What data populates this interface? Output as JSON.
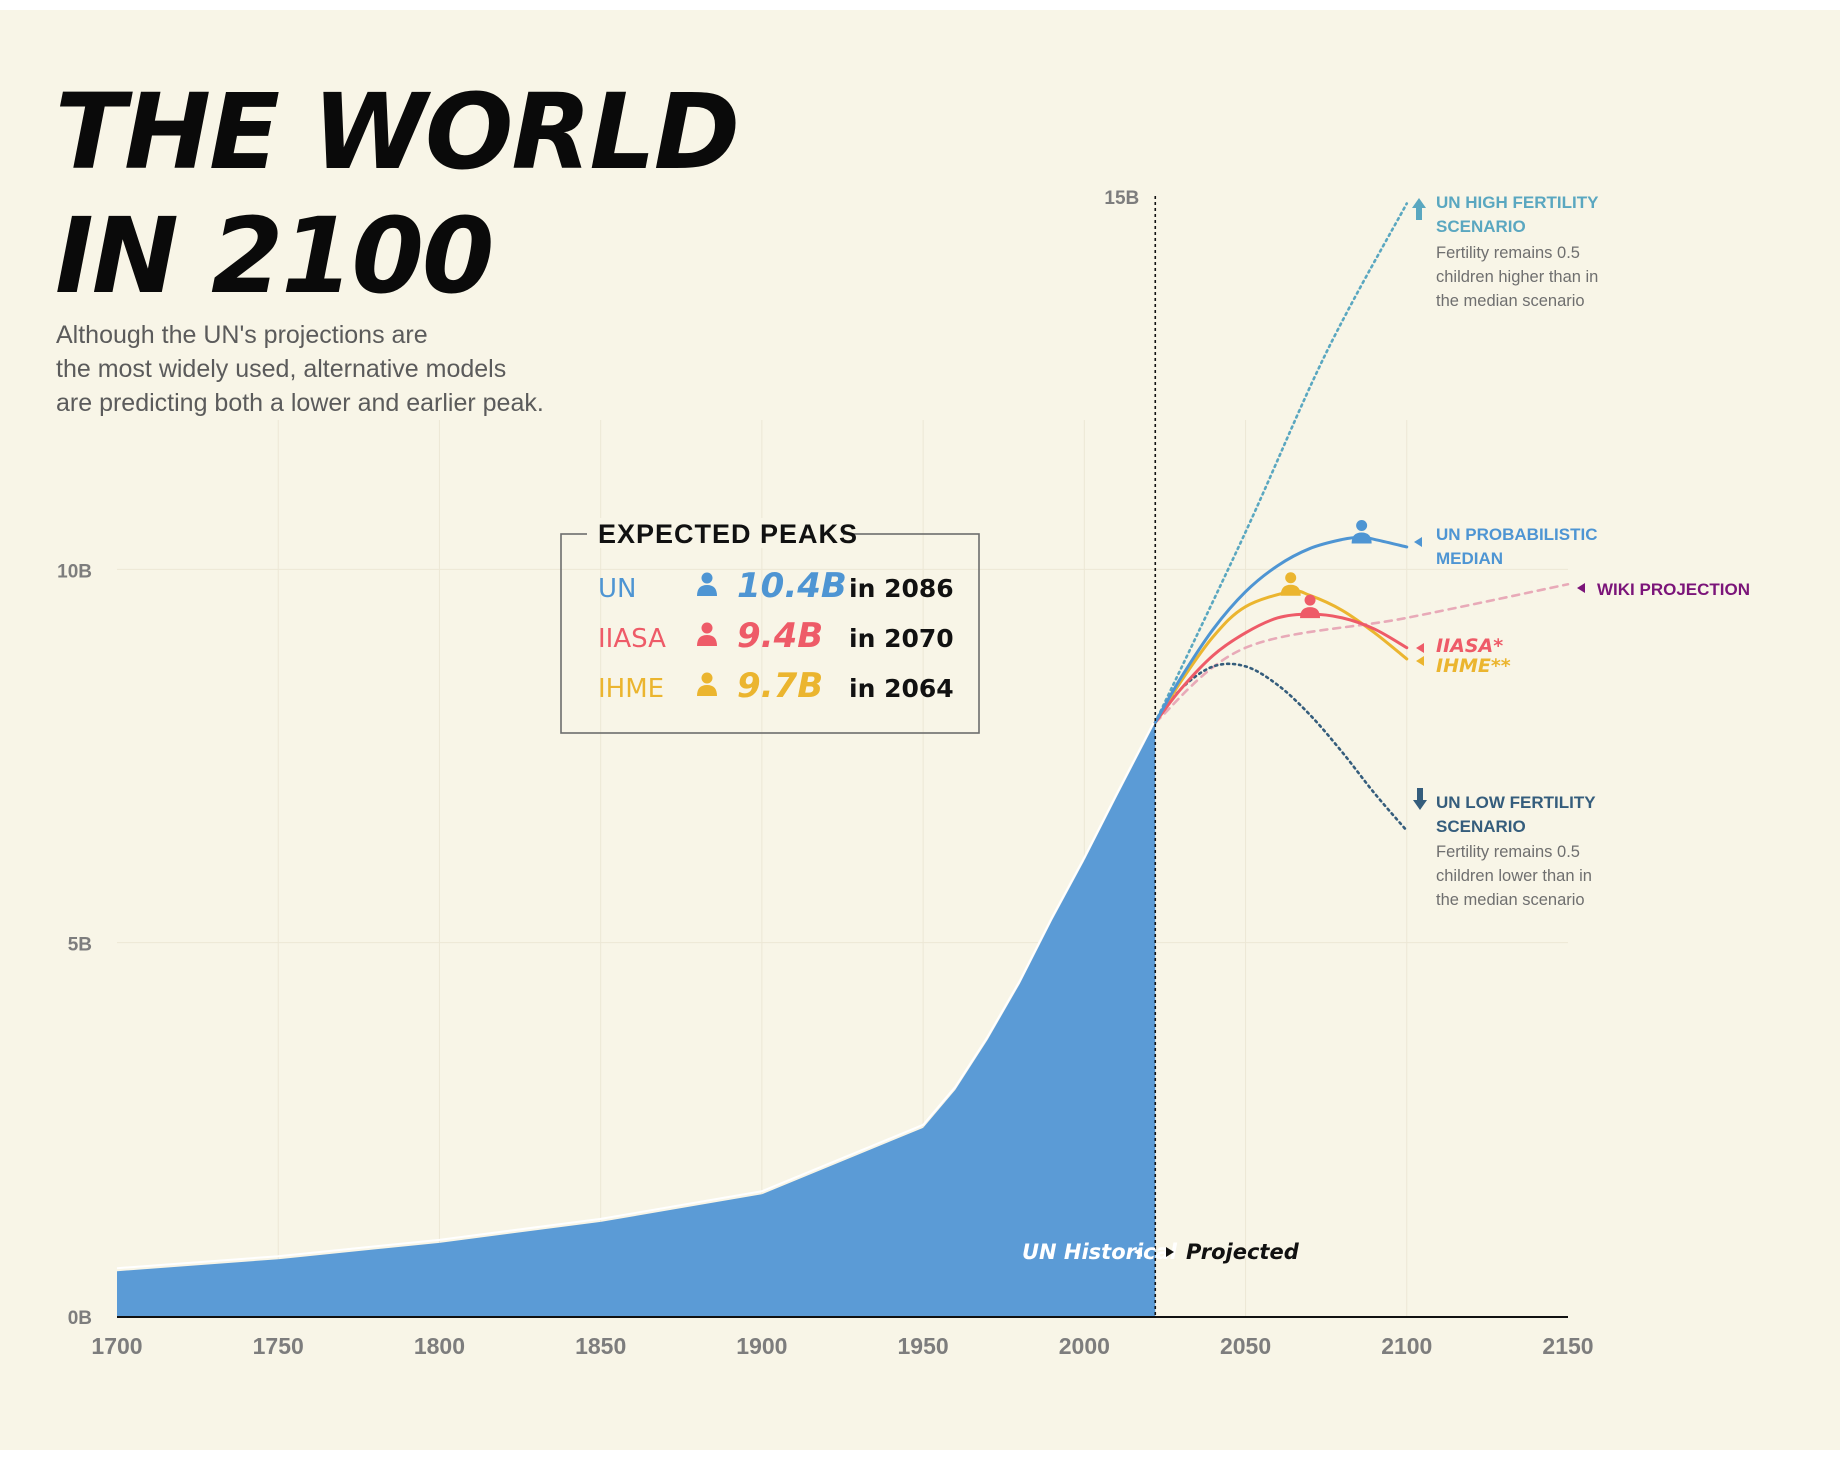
{
  "title": [
    "THE WORLD",
    "IN 2100"
  ],
  "subtitle": [
    "Although the UN's projections are",
    "the most widely used, alternative models",
    "are predicting both a lower and earlier peak."
  ],
  "expected_peaks": {
    "heading": "EXPECTED PEAKS",
    "rows": [
      {
        "model": "UN",
        "value": "10.4B",
        "year": "in 2086",
        "color": "#4e95d3"
      },
      {
        "model": "IIASA",
        "value": "9.4B",
        "year": "in 2070",
        "color": "#ee5b68"
      },
      {
        "model": "IHME",
        "value": "9.7B",
        "year": "in 2064",
        "color": "#ebb52f"
      }
    ]
  },
  "labels": {
    "un_historical": "UN Historical",
    "projected": "Projected",
    "high_title": [
      "UN HIGH FERTILITY",
      "SCENARIO"
    ],
    "high_desc": [
      "Fertility remains 0.5",
      "children higher than in",
      "the median scenario"
    ],
    "median_title": [
      "UN PROBABILISTIC",
      "MEDIAN"
    ],
    "wiki": "WIKI PROJECTION",
    "iiasa": "IIASA*",
    "ihme": "IHME**",
    "low_title": [
      "UN LOW FERTILITY",
      "SCENARIO"
    ],
    "low_desc": [
      "Fertility remains 0.5",
      "children lower than in",
      "the median scenario"
    ]
  },
  "colors": {
    "background": "#f8f5e7",
    "historical_fill": "#5b9bd6",
    "un_median": "#4e95d3",
    "iiasa": "#ee5b68",
    "ihme": "#ebb52f",
    "un_high": "#5aa7c0",
    "un_low": "#355d7c",
    "wiki": "#e8aab8",
    "wiki_label": "#7b1479"
  },
  "chart_data": {
    "type": "area",
    "xlim": [
      1700,
      2150
    ],
    "ylim": [
      0,
      15
    ],
    "x_ticks": [
      1700,
      1750,
      1800,
      1850,
      1900,
      1950,
      2000,
      2050,
      2100,
      2150
    ],
    "x_tick_labels": [
      "1700",
      "1750",
      "1800",
      "1850",
      "1900",
      "1950",
      "2000",
      "2050",
      "2100",
      "2150"
    ],
    "y_ticks": [
      0,
      5,
      10,
      15
    ],
    "y_tick_labels": [
      "0B",
      "5B",
      "10B",
      "15B"
    ],
    "projection_start": 2022,
    "series": [
      {
        "name": "UN Historical",
        "x": [
          1700,
          1750,
          1800,
          1850,
          1900,
          1950,
          1960,
          1970,
          1980,
          1990,
          2000,
          2010,
          2022
        ],
        "y": [
          0.6,
          0.76,
          0.98,
          1.26,
          1.63,
          2.52,
          3.03,
          3.7,
          4.45,
          5.3,
          6.1,
          6.95,
          7.95
        ]
      },
      {
        "name": "UN PROBABILISTIC MEDIAN",
        "x": [
          2022,
          2030,
          2040,
          2050,
          2060,
          2070,
          2080,
          2086,
          2090,
          2100
        ],
        "y": [
          7.95,
          8.55,
          9.2,
          9.7,
          10.05,
          10.28,
          10.4,
          10.43,
          10.4,
          10.3
        ]
      },
      {
        "name": "IIASA*",
        "x": [
          2022,
          2030,
          2040,
          2050,
          2060,
          2070,
          2080,
          2090,
          2100
        ],
        "y": [
          7.95,
          8.4,
          8.85,
          9.15,
          9.35,
          9.4,
          9.35,
          9.2,
          8.95
        ]
      },
      {
        "name": "IHME**",
        "x": [
          2022,
          2030,
          2040,
          2050,
          2064,
          2070,
          2080,
          2090,
          2100
        ],
        "y": [
          7.95,
          8.5,
          9.1,
          9.5,
          9.7,
          9.65,
          9.45,
          9.15,
          8.8
        ]
      },
      {
        "name": "UN HIGH FERTILITY SCENARIO",
        "x": [
          2022,
          2050,
          2075,
          2100
        ],
        "y": [
          7.95,
          10.5,
          12.9,
          14.9
        ]
      },
      {
        "name": "UN LOW FERTILITY SCENARIO",
        "x": [
          2022,
          2030,
          2040,
          2050,
          2060,
          2070,
          2080,
          2090,
          2100
        ],
        "y": [
          7.95,
          8.4,
          8.7,
          8.7,
          8.45,
          8.05,
          7.55,
          7.0,
          6.5
        ]
      },
      {
        "name": "WIKI PROJECTION",
        "x": [
          2022,
          2050,
          2100,
          2150
        ],
        "y": [
          7.95,
          8.95,
          9.35,
          9.8
        ]
      }
    ],
    "peaks": [
      {
        "name": "UN",
        "x": 2086,
        "y": 10.4
      },
      {
        "name": "IIASA",
        "x": 2070,
        "y": 9.4
      },
      {
        "name": "IHME",
        "x": 2064,
        "y": 9.7
      }
    ]
  }
}
